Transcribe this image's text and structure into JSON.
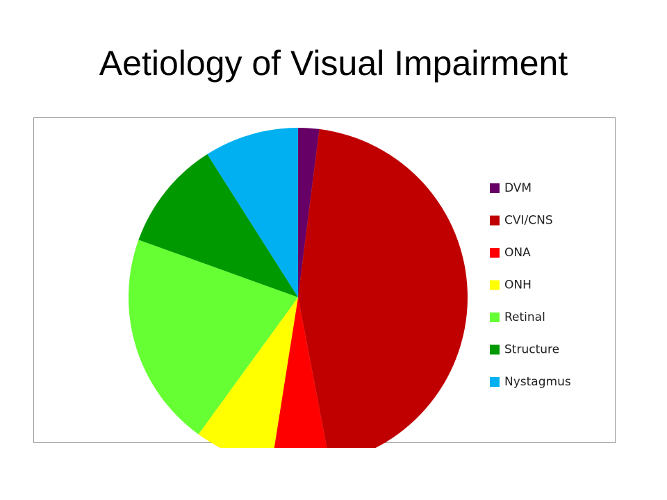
{
  "chart_data": {
    "type": "pie",
    "title": "Aetiology of Visual Impairment",
    "categories": [
      "DVM",
      "CVI/CNS",
      "ONA",
      "ONH",
      "Retinal",
      "Structure",
      "Nystagmus"
    ],
    "values": [
      2,
      45,
      5.5,
      7.5,
      20.5,
      10.5,
      9
    ],
    "colors": [
      "#660066",
      "#c00000",
      "#ff0000",
      "#ffff00",
      "#66ff33",
      "#009900",
      "#00b0f0"
    ],
    "legend": "right"
  }
}
